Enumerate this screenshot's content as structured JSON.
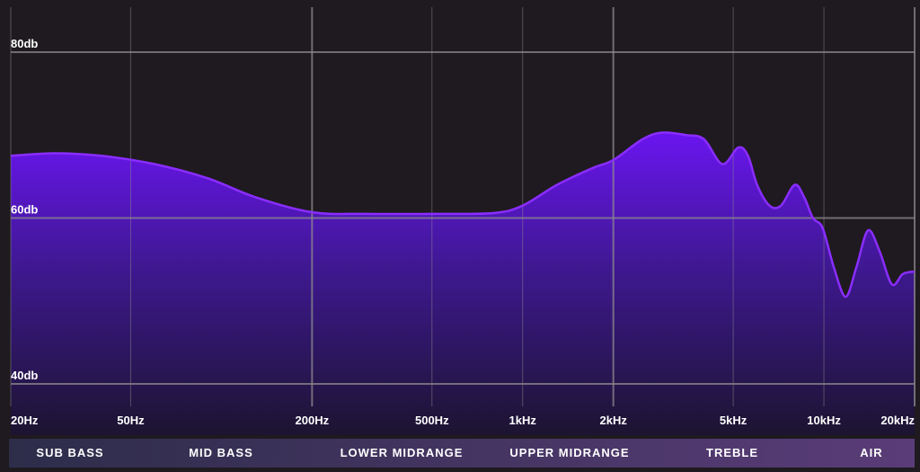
{
  "chart_data": {
    "type": "area",
    "title": "",
    "xlabel": "",
    "ylabel": "",
    "x_scale": "log",
    "xlim": [
      20,
      20000
    ],
    "ylim": [
      40,
      80
    ],
    "grid": true,
    "colors": {
      "background": "#1e1a1f",
      "curve": "#8a2dff",
      "fill_top": "#6a15f0",
      "fill_bottom": "#1c1430",
      "grid": "#8c8a8e",
      "band_bar_left": "#2d2d4a",
      "band_bar_right": "#5a3c78"
    },
    "y_ticks": [
      {
        "value": 80,
        "label": "80db"
      },
      {
        "value": 60,
        "label": "60db"
      },
      {
        "value": 40,
        "label": "40db"
      }
    ],
    "x_ticks": [
      {
        "value": 20,
        "label": "20Hz"
      },
      {
        "value": 50,
        "label": "50Hz"
      },
      {
        "value": 200,
        "label": "200Hz"
      },
      {
        "value": 500,
        "label": "500Hz"
      },
      {
        "value": 1000,
        "label": "1kHz"
      },
      {
        "value": 2000,
        "label": "2kHz"
      },
      {
        "value": 5000,
        "label": "5kHz"
      },
      {
        "value": 10000,
        "label": "10kHz"
      },
      {
        "value": 20000,
        "label": "20kHz"
      }
    ],
    "bands": [
      {
        "label": "SUB BASS",
        "center_hz": 31
      },
      {
        "label": "MID BASS",
        "center_hz": 100
      },
      {
        "label": "LOWER MIDRANGE",
        "center_hz": 400
      },
      {
        "label": "UPPER MIDRANGE",
        "center_hz": 1400
      },
      {
        "label": "TREBLE",
        "center_hz": 5000
      },
      {
        "label": "AIR",
        "center_hz": 16500
      }
    ],
    "series": [
      {
        "x": [
          20,
          28,
          40,
          60,
          90,
          130,
          200,
          300,
          500,
          800,
          1000,
          1300,
          1700,
          2000,
          2500,
          2900,
          3500,
          4000,
          4600,
          5200,
          5600,
          6000,
          6600,
          7200,
          8000,
          8600,
          9200,
          9900,
          10800,
          11800,
          12800,
          14000,
          15300,
          16800,
          18200,
          19300,
          20000
        ],
        "y": [
          67.5,
          67.8,
          67.5,
          66.5,
          64.8,
          62.5,
          60.7,
          60.5,
          60.5,
          60.6,
          61.5,
          64.0,
          66.0,
          67.0,
          69.5,
          70.3,
          70.0,
          69.5,
          66.5,
          68.5,
          67.5,
          64.0,
          61.5,
          61.5,
          64.0,
          62.5,
          60.0,
          58.8,
          54.0,
          50.5,
          54.0,
          58.5,
          56.0,
          52.0,
          53.2,
          53.5,
          53.5
        ]
      }
    ]
  }
}
